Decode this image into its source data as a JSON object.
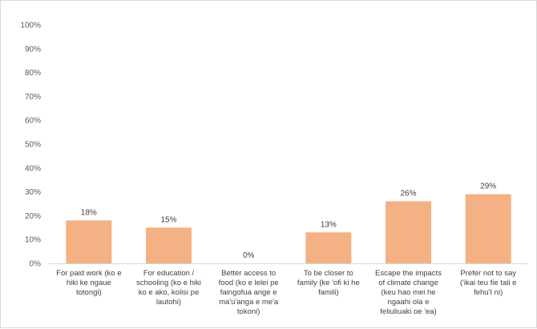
{
  "chart_data": {
    "type": "bar",
    "categories": [
      [
        "For paid work (ko e",
        "hiki ke ngaue",
        "totongi)"
      ],
      [
        "For education /",
        "schooling (ko e hiki",
        "ko e ako, kolisi pe",
        "lautohi)"
      ],
      [
        "Better access to",
        "food (ko e lelei pe",
        "faingofua ange e",
        "ma'u'anga e me'a",
        "tokoni)"
      ],
      [
        "To be closer to",
        "family (ke 'ofi ki he",
        "famili)"
      ],
      [
        "Escape the impacts",
        "of climate change",
        "(keu hao mei he",
        "ngaahi ola e",
        "feliuliuaki oe 'ea)"
      ],
      [
        "Prefer not to say",
        "('ikai teu fie tali e",
        "fehu'I ni)"
      ]
    ],
    "values": [
      18,
      15,
      0,
      13,
      26,
      29
    ],
    "data_labels": [
      "18%",
      "15%",
      "0%",
      "13%",
      "26%",
      "29%"
    ],
    "y_ticks": [
      "0%",
      "10%",
      "20%",
      "30%",
      "40%",
      "50%",
      "60%",
      "70%",
      "80%",
      "90%",
      "100%"
    ],
    "ylim": [
      0,
      100
    ],
    "grid": false,
    "bar_color": "#f4b183",
    "axis_color": "#d9d9d9",
    "title": "",
    "xlabel": "",
    "ylabel": ""
  }
}
